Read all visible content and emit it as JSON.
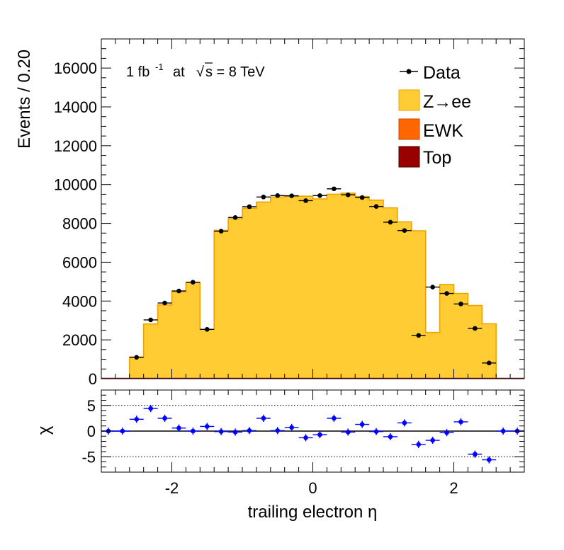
{
  "chart_data": [
    {
      "type": "bar",
      "panel": "main",
      "ylabel": "Events / 0.20",
      "xlim": [
        -3,
        3
      ],
      "ylim": [
        0,
        17500
      ],
      "y_ticks": [
        0,
        2000,
        4000,
        6000,
        8000,
        10000,
        12000,
        14000,
        16000
      ],
      "y_tick_labels": [
        "0",
        "2000",
        "4000",
        "6000",
        "8000",
        "10000",
        "12000",
        "14000",
        "16000"
      ],
      "annotation": {
        "lumi": "1 fb",
        "lumi_exp": "-1",
        "at": "at",
        "sqrt": "√",
        "energy": "s = 8 TeV"
      },
      "legend": {
        "placement": "top-right",
        "entries": [
          {
            "label": "Data",
            "style": "marker",
            "color": "#000000"
          },
          {
            "label": "Z→ee",
            "style": "fill",
            "color": "#ffcc33",
            "edge": "#f0a000"
          },
          {
            "label": "EWK",
            "style": "fill",
            "color": "#ff6600",
            "edge": "#cc4400"
          },
          {
            "label": "Top",
            "style": "fill",
            "color": "#990000",
            "edge": "#440000"
          }
        ]
      },
      "bin_edges": [
        -2.6,
        -2.4,
        -2.2,
        -2.0,
        -1.8,
        -1.6,
        -1.4,
        -1.2,
        -1.0,
        -0.8,
        -0.6,
        -0.4,
        -0.2,
        0.0,
        0.2,
        0.4,
        0.6,
        0.8,
        1.0,
        1.2,
        1.4,
        1.6,
        1.8,
        2.0,
        2.2,
        2.4,
        2.6
      ],
      "series": [
        {
          "name": "Z→ee",
          "values": [
            1120,
            2820,
            3800,
            4480,
            4950,
            2540,
            7640,
            8240,
            8780,
            9100,
            9360,
            9400,
            9400,
            9260,
            9500,
            9560,
            9380,
            9200,
            8800,
            8080,
            7620,
            2380,
            4850,
            4390,
            3770,
            2830
          ]
        },
        {
          "name": "Data",
          "values": [
            1100,
            3030,
            3900,
            4520,
            4970,
            2540,
            7600,
            8300,
            8860,
            9360,
            9430,
            9420,
            9170,
            9430,
            9780,
            9470,
            9330,
            8870,
            8060,
            7630,
            2230,
            4720,
            4390,
            3850,
            2590,
            810
          ]
        }
      ],
      "data_points_x": [
        -2.5,
        -2.3,
        -2.1,
        -1.9,
        -1.7,
        -1.5,
        -1.3,
        -1.1,
        -0.9,
        -0.7,
        -0.5,
        -0.3,
        -0.1,
        0.1,
        0.3,
        0.5,
        0.7,
        0.9,
        1.1,
        1.3,
        1.5,
        1.7,
        1.9,
        2.1,
        2.3,
        2.5
      ]
    },
    {
      "type": "scatter",
      "panel": "ratio",
      "xlabel": "trailing electron η",
      "ylabel": "χ",
      "xlim": [
        -3,
        3
      ],
      "ylim": [
        -8,
        8
      ],
      "x_ticks": [
        -2,
        0,
        2
      ],
      "x_tick_labels": [
        "-2",
        "0",
        "2"
      ],
      "y_ticks": [
        -5,
        0,
        5
      ],
      "y_tick_labels": [
        "-5",
        "0",
        "5"
      ],
      "reference_lines": [
        -5,
        0,
        5
      ],
      "x": [
        -2.9,
        -2.7,
        -2.5,
        -2.3,
        -2.1,
        -1.9,
        -1.7,
        -1.5,
        -1.3,
        -1.1,
        -0.9,
        -0.7,
        -0.5,
        -0.3,
        -0.1,
        0.1,
        0.3,
        0.5,
        0.7,
        0.9,
        1.1,
        1.3,
        1.5,
        1.7,
        1.9,
        2.1,
        2.3,
        2.5,
        2.7,
        2.9
      ],
      "y": [
        0,
        0,
        2.3,
        4.4,
        2.5,
        0.6,
        0,
        0.9,
        -0.1,
        -0.2,
        0.1,
        2.5,
        0.1,
        0.7,
        -1.3,
        -0.7,
        2.5,
        -0.2,
        1.3,
        -0.1,
        -1.1,
        1.6,
        -2.6,
        -1.8,
        -0.3,
        1.8,
        -4.5,
        -5.6,
        0,
        0
      ],
      "y_err": [
        0.7,
        0.7,
        0.7,
        0.7,
        0.7,
        0.7,
        0.7,
        0.7,
        0.7,
        0.7,
        0.7,
        0.7,
        0.7,
        0.7,
        0.7,
        0.7,
        0.7,
        0.7,
        0.7,
        0.7,
        0.7,
        0.7,
        0.7,
        0.7,
        0.7,
        0.7,
        0.7,
        0.7,
        0.7,
        0.7
      ],
      "marker_color": "#0000ff"
    }
  ]
}
